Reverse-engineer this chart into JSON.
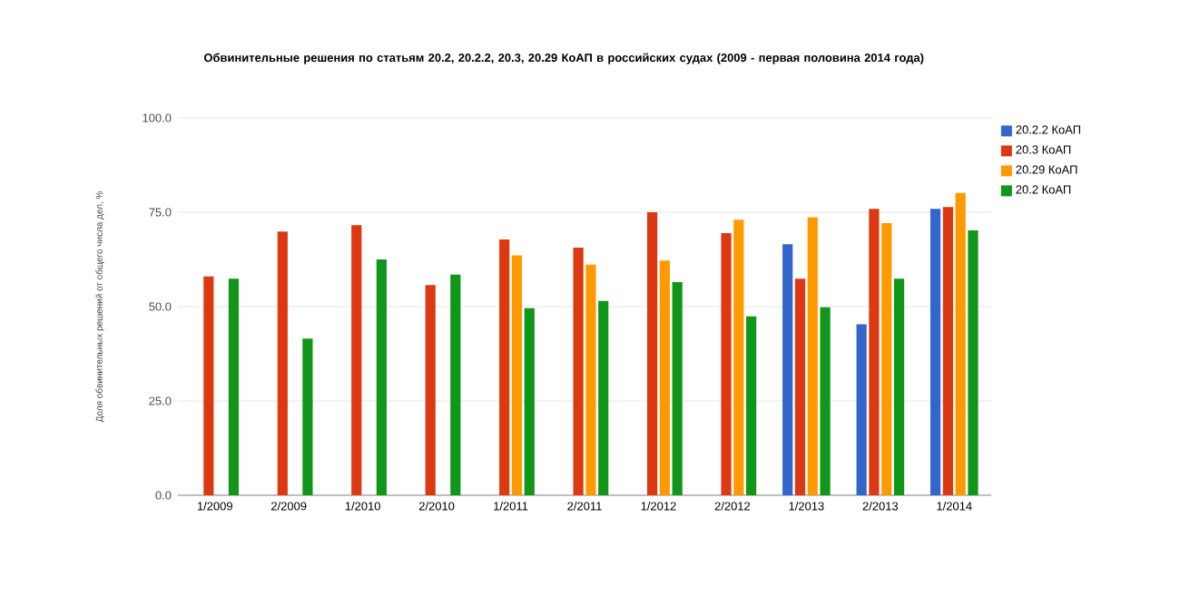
{
  "chart_data": {
    "type": "bar",
    "title": "Обвинительные решения по статьям 20.2, 20.2.2, 20.3, 20.29 КоАП в российских судах (2009 - первая половина 2014 года)",
    "ylabel": "Доля обвинительных решений от общего числа дел, %",
    "categories": [
      "1/2009",
      "2/2009",
      "1/2010",
      "2/2010",
      "1/2011",
      "2/2011",
      "1/2012",
      "2/2012",
      "1/2013",
      "2/2013",
      "1/2014"
    ],
    "series": [
      {
        "name": "20.2.2 КоАП",
        "color": "#3366cc",
        "values": [
          null,
          null,
          null,
          null,
          null,
          null,
          null,
          null,
          66.5,
          45.3,
          75.9
        ]
      },
      {
        "name": "20.3 КоАП",
        "color": "#dc3912",
        "values": [
          58.0,
          69.9,
          71.6,
          55.7,
          67.8,
          65.6,
          75.0,
          69.5,
          57.4,
          75.9,
          76.4
        ]
      },
      {
        "name": "20.29 КоАП",
        "color": "#ff9900",
        "values": [
          null,
          null,
          null,
          null,
          63.6,
          61.1,
          62.2,
          73.0,
          73.7,
          72.1,
          80.1
        ]
      },
      {
        "name": "20.2 КоАП",
        "color": "#109618",
        "values": [
          57.4,
          41.5,
          62.5,
          58.5,
          49.6,
          51.5,
          56.5,
          47.4,
          49.8,
          57.4,
          70.2
        ]
      }
    ],
    "ylim": [
      0,
      100
    ],
    "yticks": [
      {
        "value": 0,
        "label": "0.0"
      },
      {
        "value": 25,
        "label": "25.0"
      },
      {
        "value": 50,
        "label": "50.0"
      },
      {
        "value": 75,
        "label": "75.0"
      },
      {
        "value": 100,
        "label": "100.0"
      }
    ],
    "grid": "y",
    "legend": "right"
  }
}
